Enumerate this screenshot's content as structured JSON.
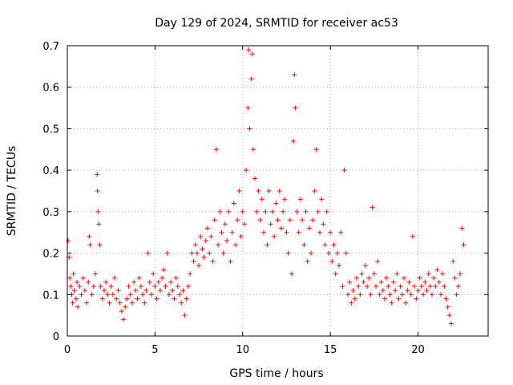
{
  "chart_data": {
    "type": "scatter",
    "title": "Day 129 of 2024, SRMTID for receiver ac53",
    "xlabel": "GPS time / hours",
    "ylabel": "SRMTID / TECUs",
    "xlim": [
      0,
      24
    ],
    "ylim": [
      0,
      0.7
    ],
    "grid": true,
    "marker": "plus",
    "color": "#ff0000",
    "x_ticks": [
      0,
      5,
      10,
      15,
      20
    ],
    "x_tick_labels": [
      "0",
      "5",
      "10",
      "15",
      "20"
    ],
    "y_ticks": [
      0,
      0.1,
      0.2,
      0.3,
      0.4,
      0.5,
      0.6,
      0.7
    ],
    "y_tick_labels": [
      "0",
      "0.1",
      "0.2",
      "0.3",
      "0.4",
      "0.5",
      "0.6",
      "0.7"
    ],
    "series": [
      {
        "name": "SRMTID",
        "points": [
          [
            0.05,
            0.23
          ],
          [
            0.1,
            0.19
          ],
          [
            0.15,
            0.14
          ],
          [
            0.2,
            0.12
          ],
          [
            0.25,
            0.1
          ],
          [
            0.3,
            0.08
          ],
          [
            0.35,
            0.15
          ],
          [
            0.4,
            0.11
          ],
          [
            0.5,
            0.09
          ],
          [
            0.55,
            0.13
          ],
          [
            0.6,
            0.07
          ],
          [
            0.7,
            0.12
          ],
          [
            0.8,
            0.1
          ],
          [
            0.9,
            0.14
          ],
          [
            1.0,
            0.11
          ],
          [
            1.1,
            0.08
          ],
          [
            1.2,
            0.13
          ],
          [
            1.25,
            0.24
          ],
          [
            1.3,
            0.22
          ],
          [
            1.4,
            0.1
          ],
          [
            1.5,
            0.12
          ],
          [
            1.6,
            0.15
          ],
          [
            1.7,
            0.39
          ],
          [
            1.72,
            0.35
          ],
          [
            1.75,
            0.3
          ],
          [
            1.8,
            0.27
          ],
          [
            1.85,
            0.22
          ],
          [
            1.9,
            0.12
          ],
          [
            2.0,
            0.09
          ],
          [
            2.1,
            0.11
          ],
          [
            2.2,
            0.13
          ],
          [
            2.3,
            0.1
          ],
          [
            2.4,
            0.08
          ],
          [
            2.5,
            0.12
          ],
          [
            2.6,
            0.1
          ],
          [
            2.7,
            0.14
          ],
          [
            2.8,
            0.09
          ],
          [
            2.9,
            0.11
          ],
          [
            3.0,
            0.08
          ],
          [
            3.1,
            0.06
          ],
          [
            3.2,
            0.04
          ],
          [
            3.3,
            0.07
          ],
          [
            3.4,
            0.09
          ],
          [
            3.5,
            0.12
          ],
          [
            3.6,
            0.1
          ],
          [
            3.7,
            0.08
          ],
          [
            3.8,
            0.13
          ],
          [
            3.9,
            0.11
          ],
          [
            4.0,
            0.09
          ],
          [
            4.1,
            0.14
          ],
          [
            4.2,
            0.12
          ],
          [
            4.3,
            0.1
          ],
          [
            4.4,
            0.08
          ],
          [
            4.5,
            0.11
          ],
          [
            4.6,
            0.2
          ],
          [
            4.7,
            0.13
          ],
          [
            4.8,
            0.1
          ],
          [
            4.9,
            0.15
          ],
          [
            5.0,
            0.12
          ],
          [
            5.1,
            0.09
          ],
          [
            5.2,
            0.13
          ],
          [
            5.3,
            0.11
          ],
          [
            5.4,
            0.14
          ],
          [
            5.5,
            0.16
          ],
          [
            5.6,
            0.12
          ],
          [
            5.7,
            0.2
          ],
          [
            5.8,
            0.1
          ],
          [
            5.9,
            0.13
          ],
          [
            6.0,
            0.11
          ],
          [
            6.1,
            0.09
          ],
          [
            6.2,
            0.14
          ],
          [
            6.3,
            0.12
          ],
          [
            6.4,
            0.1
          ],
          [
            6.5,
            0.08
          ],
          [
            6.6,
            0.11
          ],
          [
            6.7,
            0.05
          ],
          [
            6.8,
            0.09
          ],
          [
            6.9,
            0.12
          ],
          [
            7.0,
            0.15
          ],
          [
            7.1,
            0.2
          ],
          [
            7.2,
            0.18
          ],
          [
            7.3,
            0.22
          ],
          [
            7.4,
            0.2
          ],
          [
            7.5,
            0.17
          ],
          [
            7.6,
            0.24
          ],
          [
            7.7,
            0.21
          ],
          [
            7.8,
            0.19
          ],
          [
            7.9,
            0.23
          ],
          [
            8.0,
            0.26
          ],
          [
            8.1,
            0.2
          ],
          [
            8.2,
            0.24
          ],
          [
            8.3,
            0.18
          ],
          [
            8.4,
            0.28
          ],
          [
            8.5,
            0.45
          ],
          [
            8.6,
            0.22
          ],
          [
            8.7,
            0.3
          ],
          [
            8.8,
            0.25
          ],
          [
            8.9,
            0.2
          ],
          [
            9.0,
            0.27
          ],
          [
            9.1,
            0.23
          ],
          [
            9.2,
            0.3
          ],
          [
            9.3,
            0.18
          ],
          [
            9.4,
            0.25
          ],
          [
            9.5,
            0.32
          ],
          [
            9.6,
            0.22
          ],
          [
            9.7,
            0.28
          ],
          [
            9.8,
            0.35
          ],
          [
            9.9,
            0.24
          ],
          [
            10.0,
            0.3
          ],
          [
            10.1,
            0.27
          ],
          [
            10.2,
            0.4
          ],
          [
            10.3,
            0.55
          ],
          [
            10.35,
            0.69
          ],
          [
            10.4,
            0.5
          ],
          [
            10.5,
            0.62
          ],
          [
            10.55,
            0.68
          ],
          [
            10.6,
            0.45
          ],
          [
            10.7,
            0.38
          ],
          [
            10.8,
            0.3
          ],
          [
            10.9,
            0.35
          ],
          [
            11.0,
            0.28
          ],
          [
            11.1,
            0.33
          ],
          [
            11.2,
            0.25
          ],
          [
            11.3,
            0.3
          ],
          [
            11.4,
            0.22
          ],
          [
            11.5,
            0.35
          ],
          [
            11.6,
            0.27
          ],
          [
            11.7,
            0.3
          ],
          [
            11.8,
            0.24
          ],
          [
            11.9,
            0.32
          ],
          [
            12.0,
            0.28
          ],
          [
            12.1,
            0.35
          ],
          [
            12.2,
            0.26
          ],
          [
            12.3,
            0.3
          ],
          [
            12.4,
            0.33
          ],
          [
            12.5,
            0.25
          ],
          [
            12.6,
            0.2
          ],
          [
            12.7,
            0.28
          ],
          [
            12.8,
            0.15
          ],
          [
            12.9,
            0.47
          ],
          [
            12.95,
            0.63
          ],
          [
            13.0,
            0.55
          ],
          [
            13.1,
            0.3
          ],
          [
            13.2,
            0.25
          ],
          [
            13.3,
            0.33
          ],
          [
            13.4,
            0.28
          ],
          [
            13.5,
            0.22
          ],
          [
            13.6,
            0.3
          ],
          [
            13.7,
            0.18
          ],
          [
            13.8,
            0.26
          ],
          [
            13.9,
            0.2
          ],
          [
            14.0,
            0.28
          ],
          [
            14.1,
            0.35
          ],
          [
            14.2,
            0.45
          ],
          [
            14.3,
            0.3
          ],
          [
            14.4,
            0.25
          ],
          [
            14.5,
            0.33
          ],
          [
            14.6,
            0.27
          ],
          [
            14.7,
            0.22
          ],
          [
            14.8,
            0.3
          ],
          [
            14.9,
            0.2
          ],
          [
            15.0,
            0.25
          ],
          [
            15.1,
            0.18
          ],
          [
            15.2,
            0.22
          ],
          [
            15.3,
            0.15
          ],
          [
            15.4,
            0.2
          ],
          [
            15.5,
            0.17
          ],
          [
            15.6,
            0.25
          ],
          [
            15.7,
            0.12
          ],
          [
            15.8,
            0.4
          ],
          [
            15.9,
            0.2
          ],
          [
            16.0,
            0.1
          ],
          [
            16.1,
            0.13
          ],
          [
            16.2,
            0.08
          ],
          [
            16.3,
            0.11
          ],
          [
            16.4,
            0.09
          ],
          [
            16.5,
            0.14
          ],
          [
            16.6,
            0.12
          ],
          [
            16.7,
            0.1
          ],
          [
            16.8,
            0.15
          ],
          [
            16.9,
            0.13
          ],
          [
            17.0,
            0.17
          ],
          [
            17.1,
            0.12
          ],
          [
            17.2,
            0.14
          ],
          [
            17.3,
            0.1
          ],
          [
            17.4,
            0.31
          ],
          [
            17.5,
            0.15
          ],
          [
            17.6,
            0.12
          ],
          [
            17.7,
            0.18
          ],
          [
            17.8,
            0.1
          ],
          [
            17.9,
            0.13
          ],
          [
            18.0,
            0.11
          ],
          [
            18.1,
            0.09
          ],
          [
            18.2,
            0.14
          ],
          [
            18.3,
            0.12
          ],
          [
            18.4,
            0.1
          ],
          [
            18.5,
            0.08
          ],
          [
            18.6,
            0.13
          ],
          [
            18.7,
            0.11
          ],
          [
            18.8,
            0.15
          ],
          [
            18.9,
            0.09
          ],
          [
            19.0,
            0.12
          ],
          [
            19.1,
            0.1
          ],
          [
            19.2,
            0.14
          ],
          [
            19.3,
            0.08
          ],
          [
            19.4,
            0.11
          ],
          [
            19.5,
            0.13
          ],
          [
            19.6,
            0.1
          ],
          [
            19.7,
            0.24
          ],
          [
            19.8,
            0.12
          ],
          [
            19.9,
            0.09
          ],
          [
            20.0,
            0.11
          ],
          [
            20.1,
            0.14
          ],
          [
            20.2,
            0.12
          ],
          [
            20.3,
            0.1
          ],
          [
            20.4,
            0.13
          ],
          [
            20.5,
            0.11
          ],
          [
            20.6,
            0.15
          ],
          [
            20.7,
            0.12
          ],
          [
            20.8,
            0.1
          ],
          [
            20.9,
            0.14
          ],
          [
            21.0,
            0.12
          ],
          [
            21.1,
            0.16
          ],
          [
            21.2,
            0.13
          ],
          [
            21.3,
            0.1
          ],
          [
            21.4,
            0.15
          ],
          [
            21.5,
            0.12
          ],
          [
            21.6,
            0.09
          ],
          [
            21.7,
            0.07
          ],
          [
            21.8,
            0.05
          ],
          [
            21.9,
            0.03
          ],
          [
            22.0,
            0.18
          ],
          [
            22.1,
            0.14
          ],
          [
            22.2,
            0.1
          ],
          [
            22.3,
            0.12
          ],
          [
            22.4,
            0.15
          ],
          [
            22.5,
            0.26
          ],
          [
            22.6,
            0.22
          ]
        ]
      }
    ]
  }
}
